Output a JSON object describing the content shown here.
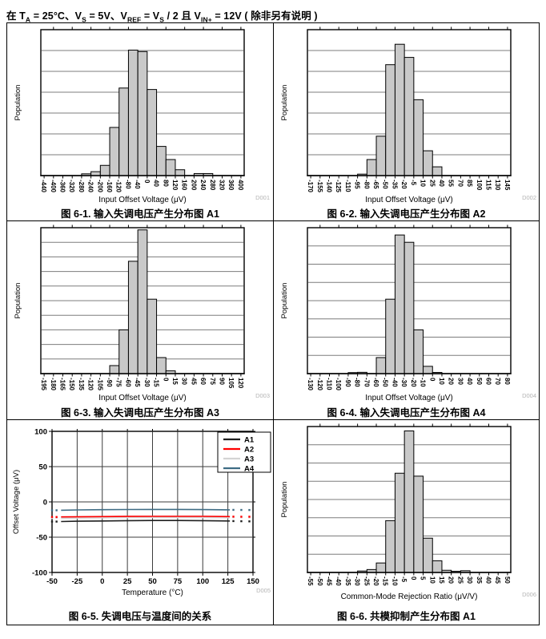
{
  "header": {
    "text": "在 TA = 25°C、VS = 5V、VREF = VS / 2 且 VIN+ = 12V ( 除非另有说明 )",
    "segments": [
      {
        "t": "在 T"
      },
      {
        "t": "A",
        "sub": true
      },
      {
        "t": " = 25°C、V"
      },
      {
        "t": "S",
        "sub": true
      },
      {
        "t": " = 5V、V"
      },
      {
        "t": "REF",
        "sub": true
      },
      {
        "t": " = V"
      },
      {
        "t": "S",
        "sub": true
      },
      {
        "t": " / 2 且 V"
      },
      {
        "t": "IN+",
        "sub": true
      },
      {
        "t": " = 12V ( 除非另有说明 )"
      }
    ]
  },
  "colors": {
    "bar_fill": "#c9c9c9",
    "bar_stroke": "#000000",
    "hist_grid": "#7d7d7d",
    "line_grid": "#3c3c3c",
    "axis": "#000000",
    "code_label": "#b4b4b4"
  },
  "chart_data": [
    {
      "type": "bar",
      "title": "图 6-1. 输入失调电压产生分布图 A1",
      "xlabel": "Input Offset Voltage (μV)",
      "ylabel": "Population",
      "code": "D001",
      "bin": 40,
      "y_grid_divisions": 7,
      "x_ticks": [
        -440,
        -400,
        -360,
        -320,
        -280,
        -240,
        -200,
        -160,
        -120,
        -80,
        -40,
        0,
        40,
        80,
        120,
        160,
        200,
        240,
        280,
        320,
        360,
        400
      ],
      "bars": [
        [
          -280,
          1.2
        ],
        [
          -240,
          2.7
        ],
        [
          -200,
          7
        ],
        [
          -160,
          33
        ],
        [
          -120,
          60
        ],
        [
          -80,
          86
        ],
        [
          -40,
          85
        ],
        [
          0,
          59
        ],
        [
          40,
          20
        ],
        [
          80,
          11
        ],
        [
          120,
          4
        ],
        [
          200,
          1.4
        ],
        [
          240,
          1.4
        ]
      ]
    },
    {
      "type": "bar",
      "title": "图 6-2. 输入失调电压产生分布图 A2",
      "xlabel": "Input Offset Voltage (μV)",
      "ylabel": "Population",
      "code": "D002",
      "bin": 15,
      "y_grid_divisions": 7,
      "x_ticks": [
        -170,
        -155,
        -140,
        -125,
        -110,
        -95,
        -80,
        -65,
        -50,
        -35,
        -20,
        -5,
        10,
        25,
        40,
        55,
        70,
        85,
        100,
        115,
        130,
        145
      ],
      "bars": [
        [
          -95,
          1
        ],
        [
          -80,
          11
        ],
        [
          -65,
          27
        ],
        [
          -50,
          76
        ],
        [
          -35,
          90
        ],
        [
          -20,
          81
        ],
        [
          -5,
          52
        ],
        [
          10,
          17
        ],
        [
          25,
          6
        ]
      ]
    },
    {
      "type": "bar",
      "title": "图 6-3. 输入失调电压产生分布图 A3",
      "xlabel": "Input Offset Voltage (μV)",
      "ylabel": "Population",
      "code": "D003",
      "bin": 15,
      "y_grid_divisions": 10,
      "x_ticks": [
        -195,
        -180,
        -165,
        -150,
        -135,
        -120,
        -105,
        -90,
        -75,
        -60,
        -45,
        -30,
        -15,
        0,
        15,
        30,
        45,
        60,
        75,
        90,
        105,
        120
      ],
      "bars": [
        [
          -90,
          5.5
        ],
        [
          -75,
          30
        ],
        [
          -60,
          77
        ],
        [
          -45,
          98.5
        ],
        [
          -30,
          51
        ],
        [
          -15,
          11
        ],
        [
          0,
          1.9
        ]
      ]
    },
    {
      "type": "bar",
      "title": "图 6-4. 输入失调电压产生分布图 A4",
      "xlabel": "Input Offset Voltage (μV)",
      "ylabel": "Population",
      "code": "D004",
      "bin": 10,
      "y_grid_divisions": 8,
      "x_ticks": [
        -130,
        -120,
        -110,
        -100,
        -90,
        -80,
        -70,
        -60,
        -50,
        -40,
        -30,
        -20,
        -10,
        0,
        10,
        20,
        30,
        40,
        50,
        60,
        70,
        80
      ],
      "bars": [
        [
          -90,
          0.7
        ],
        [
          -80,
          0.9
        ],
        [
          -60,
          11
        ],
        [
          -50,
          51
        ],
        [
          -40,
          95
        ],
        [
          -30,
          90
        ],
        [
          -20,
          30
        ],
        [
          -10,
          5
        ],
        [
          0,
          0.8
        ]
      ]
    },
    {
      "type": "line",
      "title": "图 6-5. 失调电压与温度间的关系",
      "xlabel": "Temperature (°C)",
      "ylabel": "Offset Voltage (μV)",
      "code": "D005",
      "xlim": [
        -50,
        150
      ],
      "ylim": [
        -100,
        100
      ],
      "x_ticks": [
        -50,
        -25,
        0,
        25,
        50,
        75,
        100,
        125,
        150
      ],
      "y_ticks": [
        100,
        50,
        0,
        -50,
        -100
      ],
      "legend_position": "top-right",
      "series": [
        {
          "name": "A1",
          "color": "#1f1f1f",
          "width": 1.6,
          "points": [
            [
              -41,
              -27.8
            ],
            [
              -25,
              -27.4
            ],
            [
              0,
              -27
            ],
            [
              25,
              -26.6
            ],
            [
              50,
              -26.4
            ],
            [
              75,
              -26.4
            ],
            [
              100,
              -26.6
            ],
            [
              127,
              -27
            ]
          ],
          "dots_left": [
            [
              -50,
              -27.9
            ],
            [
              -45.5,
              -27.9
            ]
          ],
          "dots_right": [
            [
              130.5,
              -27.2
            ],
            [
              138.4,
              -27.4
            ],
            [
              146.4,
              -27.6
            ]
          ]
        },
        {
          "name": "A2",
          "color": "#ff0000",
          "width": 1.6,
          "points": [
            [
              -41,
              -21.3
            ],
            [
              -25,
              -21.1
            ],
            [
              0,
              -20.8
            ],
            [
              25,
              -20.6
            ],
            [
              50,
              -20.5
            ],
            [
              75,
              -20.5
            ],
            [
              100,
              -20.5
            ],
            [
              127,
              -20.8
            ]
          ],
          "dots_left": [
            [
              -50,
              -21.4
            ],
            [
              -45.5,
              -21.4
            ]
          ],
          "dots_right": [
            [
              130.5,
              -20.9
            ],
            [
              138.4,
              -21
            ],
            [
              146.4,
              -21
            ]
          ]
        },
        {
          "name": "A3",
          "color": "#d4d4d4",
          "width": 3,
          "points": [
            [
              -41,
              -22.6
            ],
            [
              -25,
              -22.1
            ],
            [
              0,
              -21.7
            ],
            [
              25,
              -21.4
            ],
            [
              50,
              -21.2
            ],
            [
              75,
              -21.2
            ],
            [
              100,
              -21.2
            ],
            [
              127,
              -21.6
            ]
          ],
          "dots_left": [
            [
              -50,
              -22.8
            ],
            [
              -45.5,
              -22.7
            ]
          ],
          "dots_right": [
            [
              130.5,
              -21.8
            ],
            [
              138.4,
              -21.9
            ],
            [
              146.4,
              -22
            ]
          ]
        },
        {
          "name": "A4",
          "color": "#3f6c84",
          "width": 1.6,
          "points": [
            [
              -41,
              -11.8
            ],
            [
              -25,
              -11.4
            ],
            [
              0,
              -11
            ],
            [
              25,
              -10.8
            ],
            [
              50,
              -10.7
            ],
            [
              75,
              -10.7
            ],
            [
              100,
              -10.9
            ],
            [
              127,
              -11.2
            ]
          ],
          "dots_left": [
            [
              -50,
              -11.9
            ],
            [
              -45.5,
              -11.9
            ]
          ],
          "dots_right": [
            [
              130.5,
              -11.3
            ],
            [
              138.4,
              -11.4
            ],
            [
              146.4,
              -11.5
            ]
          ]
        }
      ]
    },
    {
      "type": "bar",
      "title": "图 6-6. 共模抑制产生分布图 A1",
      "xlabel": "Common-Mode Rejection Ratio (μV/V)",
      "ylabel": "Population",
      "code": "D006",
      "bin": 5,
      "y_grid_divisions": 8,
      "x_ticks": [
        -55,
        -50,
        -45,
        -40,
        -35,
        -30,
        -25,
        -20,
        -15,
        -10,
        -5,
        0,
        5,
        10,
        15,
        20,
        25,
        30,
        35,
        40,
        45,
        50
      ],
      "bars": [
        [
          -30,
          1
        ],
        [
          -25,
          2
        ],
        [
          -20,
          6.5
        ],
        [
          -15,
          35.5
        ],
        [
          -10,
          68
        ],
        [
          -5,
          97
        ],
        [
          0,
          66
        ],
        [
          5,
          23.5
        ],
        [
          10,
          8
        ],
        [
          15,
          1.5
        ],
        [
          20,
          0.8
        ],
        [
          25,
          1.2
        ]
      ]
    }
  ]
}
